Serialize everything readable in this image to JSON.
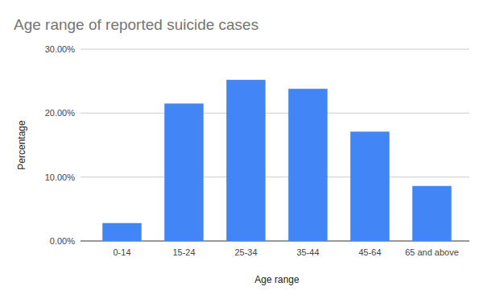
{
  "chart_data": {
    "type": "bar",
    "title": "Age range of reported suicide cases",
    "x_label": "Age range",
    "y_label": "Percentage",
    "categories": [
      "0-14",
      "15-24",
      "25-34",
      "35-44",
      "45-64",
      "65 and above"
    ],
    "values": [
      2.8,
      21.5,
      25.2,
      23.8,
      17.1,
      8.6
    ],
    "color": "#4285f4",
    "ylim": [
      0,
      30
    ],
    "yticks": [
      {
        "value": 0,
        "label": "0.00%"
      },
      {
        "value": 10,
        "label": "10.00%"
      },
      {
        "value": 20,
        "label": "20.00%"
      },
      {
        "value": 30,
        "label": "30.00%"
      }
    ],
    "grid": true
  }
}
